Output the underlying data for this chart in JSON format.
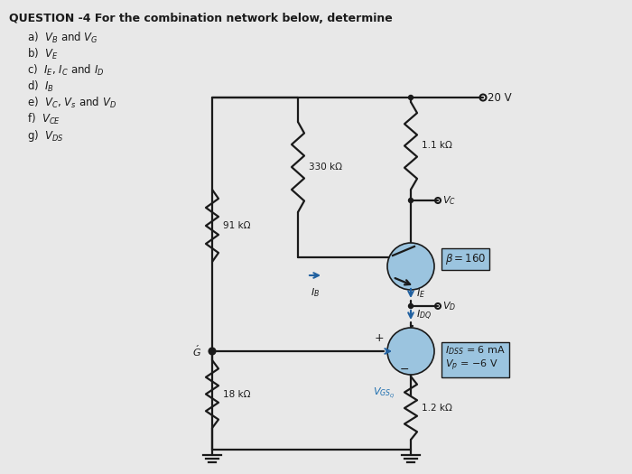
{
  "bg_color": "#e8e8e8",
  "title_text": "QUESTION -4 For the combination network below, determine",
  "q_texts": [
    "a)  $V_B$ and $V_G$",
    "b)  $V_E$",
    "c)  $I_E$, $I_C$ and $I_D$",
    "d)  $I_B$",
    "e)  $V_C$, $V_s$ and $V_D$",
    "f)  $V_{CE}$",
    "g)  $V_{DS}$"
  ],
  "R1_label": "330 kΩ",
  "R2_label": "91 kΩ",
  "R3_label": "1.1 kΩ",
  "R4_label": "18 kΩ",
  "R5_label": "1.2 kΩ",
  "supply_label": "20 V",
  "beta_label": "$\\beta = 160$",
  "idss_label": "$I_{DSS}$ = 6 mA",
  "vp_label": "$V_p$ = −6 V",
  "vc_label": "$V_C$",
  "vd_label": "$V_D$",
  "g_label": "$\\acute{G}$",
  "ib_label": "$I_B$",
  "ie_label": "$I_E$",
  "idq_label": "$I_{DQ}$",
  "vgsq_label": "$V_{GS_Q}$",
  "plus_label": "+",
  "minus_label": "−",
  "bjt_color": "#9bc4df",
  "jfet_color": "#9bc4df",
  "box_color": "#9bc4df",
  "wire_color": "#1a1a1a",
  "text_color": "#1a1a1a"
}
